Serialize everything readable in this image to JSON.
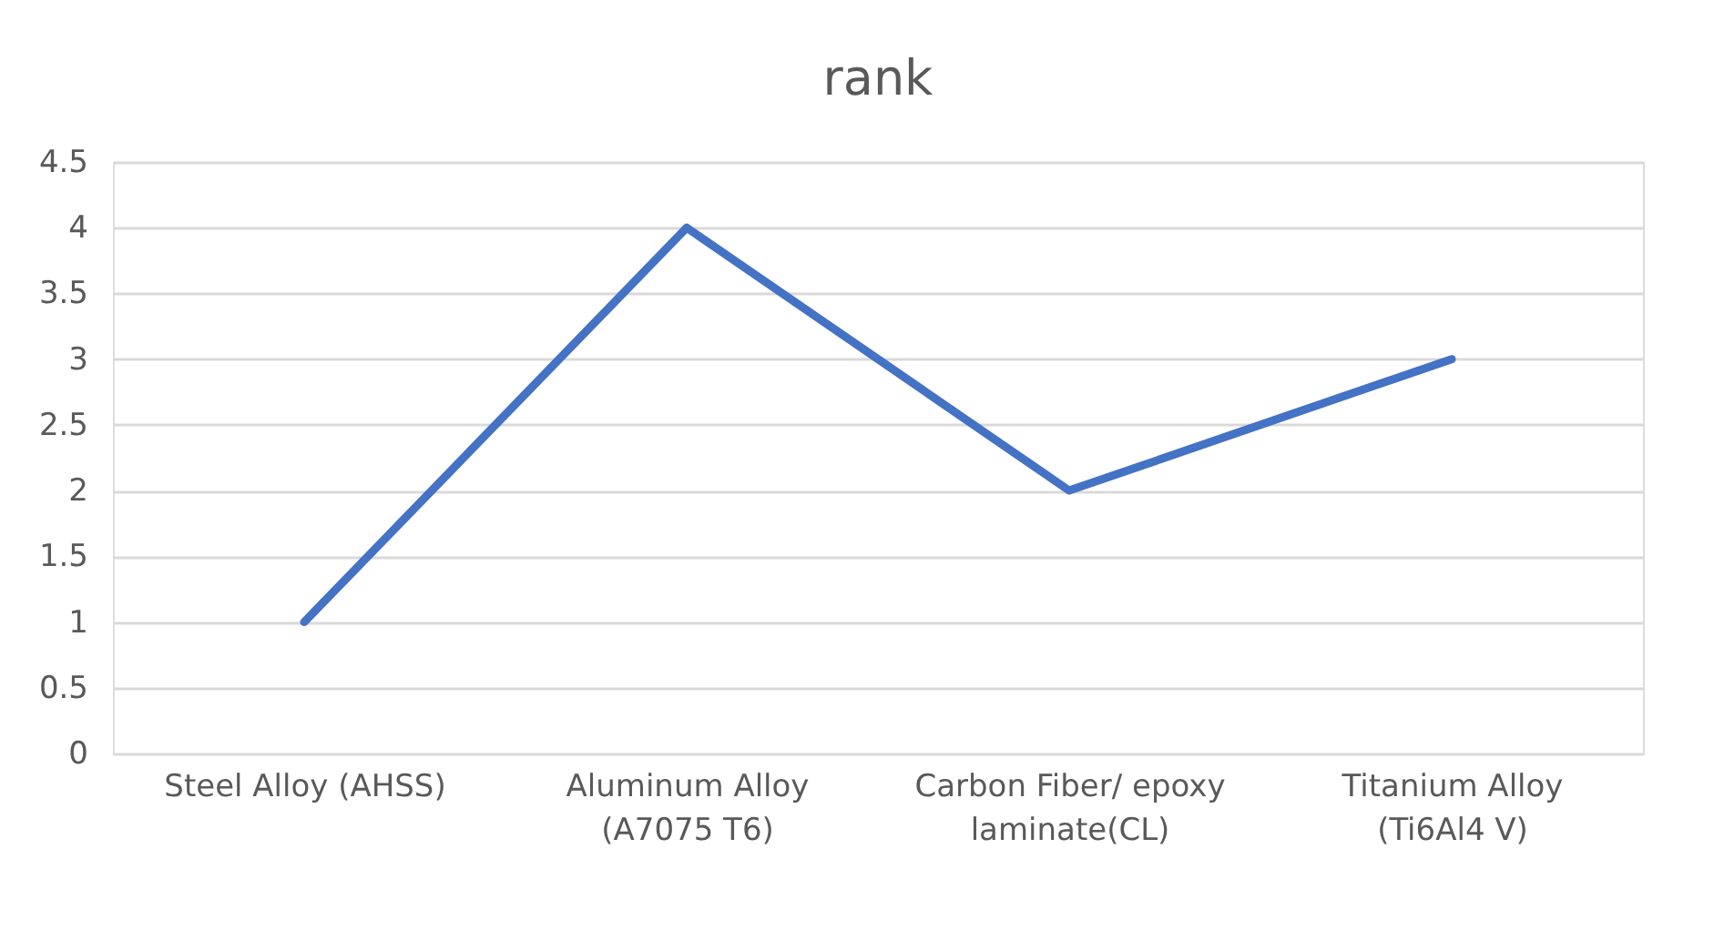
{
  "chart_data": {
    "type": "line",
    "title": "rank",
    "categories": [
      "Steel Alloy (AHSS)",
      "Aluminum Alloy\n(A7075 T6)",
      "Carbon Fiber/ epoxy\nlaminate(CL)",
      "Titanium Alloy\n(Ti6Al4 V)"
    ],
    "values": [
      1,
      4,
      2,
      3
    ],
    "color": "#4472c4",
    "ylim": [
      0,
      4.5
    ],
    "yticks": [
      0,
      0.5,
      1,
      1.5,
      2,
      2.5,
      3,
      3.5,
      4,
      4.5
    ],
    "grid": "y",
    "marker": "none",
    "line_style": "solid"
  }
}
